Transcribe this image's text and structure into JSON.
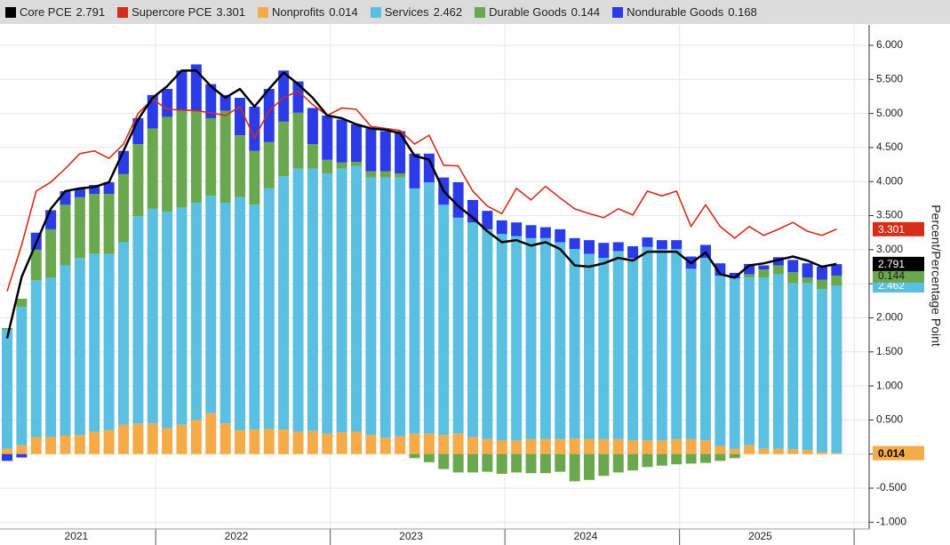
{
  "chart_data": {
    "type": "bar",
    "y_axis_label": "Percent/Percentage Point",
    "categories": [
      null,
      null,
      null,
      null,
      null,
      "2021",
      null,
      null,
      null,
      null,
      null,
      null,
      null,
      null,
      null,
      null,
      "2022",
      null,
      null,
      null,
      null,
      null,
      null,
      null,
      null,
      null,
      null,
      null,
      "2023",
      null,
      null,
      null,
      null,
      null,
      null,
      null,
      null,
      null,
      null,
      null,
      "2024",
      null,
      null,
      null,
      null,
      null,
      null,
      null,
      null,
      null,
      null,
      null,
      "2025",
      null,
      null,
      null,
      null,
      null
    ],
    "ylim": [
      -1.1,
      6.3
    ],
    "yticks": [
      {
        "value": -1,
        "label": "-1.000"
      },
      {
        "value": -0.5,
        "label": "-0.500"
      },
      {
        "value": 0,
        "label": "0.000"
      },
      {
        "value": 0.5,
        "label": "0.500"
      },
      {
        "value": 1,
        "label": "1.000"
      },
      {
        "value": 1.5,
        "label": "1.500"
      },
      {
        "value": 2,
        "label": "2.000"
      },
      {
        "value": 2.5,
        "label": "2.500"
      },
      {
        "value": 3,
        "label": "3.000"
      },
      {
        "value": 3.5,
        "label": "3.500"
      },
      {
        "value": 4,
        "label": "4.000"
      },
      {
        "value": 4.5,
        "label": "4.500"
      },
      {
        "value": 5,
        "label": "5.000"
      },
      {
        "value": 5.5,
        "label": "5.500"
      },
      {
        "value": 6,
        "label": "6.000"
      }
    ],
    "grid": true,
    "series": [
      {
        "name": "Core PCE",
        "type": "line",
        "color": "#000000",
        "last_value_tag": true,
        "values": [
          1.7,
          2.6,
          3.1,
          3.6,
          3.86,
          3.9,
          3.92,
          3.99,
          4.45,
          4.91,
          5.23,
          5.4,
          5.63,
          5.63,
          5.4,
          5.23,
          5.36,
          5.1,
          5.36,
          5.6,
          5.43,
          5.23,
          4.97,
          4.93,
          4.84,
          4.78,
          4.76,
          4.71,
          4.38,
          4.32,
          3.86,
          3.64,
          3.47,
          3.27,
          3.11,
          3.14,
          3.06,
          3.11,
          3.01,
          2.77,
          2.75,
          2.8,
          2.88,
          2.84,
          2.97,
          2.97,
          2.97,
          2.8,
          2.96,
          2.64,
          2.59,
          2.77,
          2.8,
          2.85,
          2.9,
          2.84,
          2.75,
          2.791
        ]
      },
      {
        "name": "Supercore PCE",
        "type": "line",
        "color": "#d62c1a",
        "last_value_tag": true,
        "values": [
          2.39,
          3.07,
          3.86,
          3.99,
          4.19,
          4.41,
          4.45,
          4.34,
          4.55,
          5.0,
          5.21,
          5.06,
          5.05,
          5.04,
          5.01,
          4.97,
          5.1,
          4.64,
          5.04,
          5.23,
          5.33,
          5.13,
          4.97,
          5.08,
          5.06,
          4.81,
          4.78,
          4.75,
          4.55,
          4.68,
          4.24,
          4.23,
          3.86,
          3.64,
          3.53,
          3.9,
          3.73,
          3.93,
          3.76,
          3.6,
          3.53,
          3.47,
          3.6,
          3.51,
          3.86,
          3.79,
          3.86,
          3.34,
          3.66,
          3.34,
          3.17,
          3.34,
          3.21,
          3.3,
          3.4,
          3.27,
          3.21,
          3.301
        ]
      },
      {
        "name": "Nonprofits",
        "type": "bar",
        "color": "#f5ab48",
        "last_value_tag": true,
        "values": [
          0.08,
          0.13,
          0.25,
          0.25,
          0.27,
          0.28,
          0.33,
          0.35,
          0.43,
          0.45,
          0.45,
          0.38,
          0.43,
          0.5,
          0.6,
          0.45,
          0.35,
          0.36,
          0.37,
          0.36,
          0.33,
          0.34,
          0.3,
          0.32,
          0.33,
          0.28,
          0.24,
          0.26,
          0.3,
          0.3,
          0.28,
          0.3,
          0.25,
          0.22,
          0.2,
          0.2,
          0.22,
          0.22,
          0.22,
          0.23,
          0.22,
          0.22,
          0.22,
          0.2,
          0.2,
          0.2,
          0.22,
          0.22,
          0.2,
          0.12,
          0.08,
          0.13,
          0.08,
          0.08,
          0.07,
          0.06,
          0.03,
          0.014
        ]
      },
      {
        "name": "Services",
        "type": "bar",
        "color": "#5bbfe2",
        "last_value_tag": true,
        "values": [
          1.75,
          2.03,
          2.3,
          2.34,
          2.5,
          2.6,
          2.61,
          2.59,
          2.68,
          3.04,
          3.15,
          3.18,
          3.19,
          3.19,
          3.19,
          3.24,
          3.42,
          3.3,
          3.53,
          3.72,
          3.86,
          3.85,
          3.82,
          3.87,
          3.9,
          3.78,
          3.82,
          3.8,
          3.6,
          3.69,
          3.38,
          3.17,
          3.15,
          3.08,
          3.03,
          3.0,
          2.95,
          2.95,
          2.89,
          2.78,
          2.72,
          2.66,
          2.76,
          2.68,
          2.84,
          2.81,
          2.79,
          2.5,
          2.68,
          2.5,
          2.5,
          2.46,
          2.51,
          2.56,
          2.44,
          2.45,
          2.39,
          2.462
        ]
      },
      {
        "name": "Durable Goods",
        "type": "bar",
        "color": "#6aa84f",
        "last_value_tag": true,
        "values": [
          0.02,
          0.12,
          0.45,
          0.71,
          0.89,
          0.89,
          0.88,
          0.88,
          1.0,
          1.06,
          1.18,
          1.39,
          1.42,
          1.35,
          1.14,
          1.35,
          0.91,
          0.79,
          0.68,
          0.8,
          0.82,
          0.36,
          0.2,
          0.09,
          0.06,
          0.09,
          0.09,
          0.06,
          -0.06,
          -0.12,
          -0.22,
          -0.27,
          -0.27,
          -0.26,
          -0.29,
          -0.27,
          -0.28,
          -0.28,
          -0.26,
          -0.4,
          -0.38,
          -0.32,
          -0.27,
          -0.24,
          -0.19,
          -0.17,
          -0.15,
          -0.14,
          -0.13,
          -0.1,
          -0.06,
          0.05,
          0.12,
          0.13,
          0.16,
          0.08,
          0.14,
          0.144
        ]
      },
      {
        "name": "Nondurable Goods",
        "type": "bar",
        "color": "#2b3be6",
        "last_value_tag": false,
        "values": [
          -0.1,
          -0.05,
          0.25,
          0.28,
          0.2,
          0.13,
          0.13,
          0.17,
          0.34,
          0.38,
          0.49,
          0.41,
          0.59,
          0.68,
          0.5,
          0.23,
          0.55,
          0.65,
          0.78,
          0.75,
          0.46,
          0.53,
          0.65,
          0.63,
          0.55,
          0.63,
          0.59,
          0.62,
          0.51,
          0.42,
          0.4,
          0.52,
          0.33,
          0.27,
          0.2,
          0.2,
          0.19,
          0.16,
          0.19,
          0.16,
          0.2,
          0.22,
          0.13,
          0.17,
          0.14,
          0.13,
          0.13,
          0.18,
          0.19,
          0.18,
          0.08,
          0.15,
          0.06,
          0.12,
          0.18,
          0.21,
          0.19,
          0.168
        ]
      }
    ]
  }
}
